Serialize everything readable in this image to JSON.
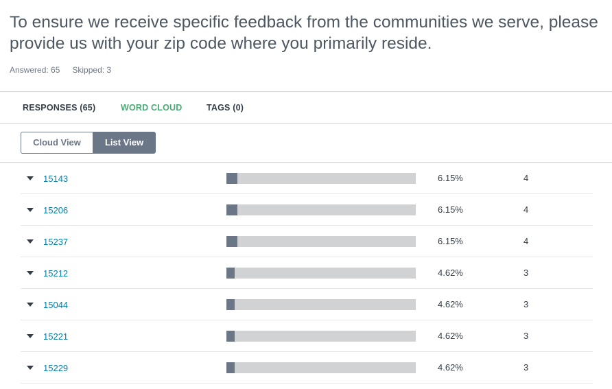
{
  "question": {
    "title": "To ensure we receive specific feedback from the communities we serve, please provide us with your zip code where you primarily reside.",
    "answered": "Answered: 65",
    "skipped": "Skipped: 3"
  },
  "tabs": [
    {
      "label": "RESPONSES (65)",
      "active": false
    },
    {
      "label": "WORD CLOUD",
      "active": true
    },
    {
      "label": "TAGS (0)",
      "active": false
    }
  ],
  "view_toggle": {
    "cloud_label": "Cloud View",
    "list_label": "List View",
    "selected": "List View"
  },
  "colors": {
    "accent_green": "#4aab74",
    "link_blue": "#007faa",
    "bar_fill": "#6b7787",
    "bar_track": "#d0d2d3"
  },
  "rows": [
    {
      "zip": "15143",
      "percent": "6.15%",
      "count": "4",
      "fraction": 0.0615
    },
    {
      "zip": "15206",
      "percent": "6.15%",
      "count": "4",
      "fraction": 0.0615
    },
    {
      "zip": "15237",
      "percent": "6.15%",
      "count": "4",
      "fraction": 0.0615
    },
    {
      "zip": "15212",
      "percent": "4.62%",
      "count": "3",
      "fraction": 0.0462
    },
    {
      "zip": "15044",
      "percent": "4.62%",
      "count": "3",
      "fraction": 0.0462
    },
    {
      "zip": "15221",
      "percent": "4.62%",
      "count": "3",
      "fraction": 0.0462
    },
    {
      "zip": "15229",
      "percent": "4.62%",
      "count": "3",
      "fraction": 0.0462
    }
  ]
}
